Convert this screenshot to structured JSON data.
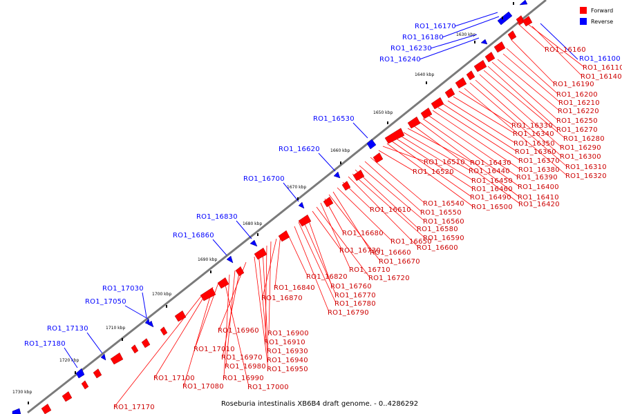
{
  "legend": [
    {
      "label": "Forward",
      "color": "#ff0000"
    },
    {
      "label": "Reverse",
      "color": "#0000ff"
    }
  ],
  "caption": "Roseburia intestinalis XB6B4 draft genome. - 0..4286292",
  "colors": {
    "forward": "#ff0000",
    "reverse": "#0000ff",
    "backbone": "#808080"
  },
  "kbp_ticks": [
    "1630 kbp",
    "1640 kbp",
    "1650 kbp",
    "1660 kbp",
    "1670 kbp",
    "1680 kbp",
    "1690 kbp",
    "1700 kbp",
    "1710 kbp",
    "1720 kbp",
    "1730 kbp"
  ],
  "reverse_labels": [
    "RO1_16170",
    "RO1_16180",
    "RO1_16230",
    "RO1_16240",
    "RO1_16530",
    "RO1_16620",
    "RO1_16700",
    "RO1_16830",
    "RO1_16860",
    "RO1_17030",
    "RO1_17050",
    "RO1_17130",
    "RO1_17180",
    "RO1_16100"
  ],
  "forward_labels": [
    "RO1_16160",
    "RO1_16110",
    "RO1_16140",
    "RO1_16190",
    "RO1_16200",
    "RO1_16210",
    "RO1_16220",
    "RO1_16250",
    "RO1_16270",
    "RO1_16280",
    "RO1_16290",
    "RO1_16300",
    "RO1_16310",
    "RO1_16320",
    "RO1_16330",
    "RO1_16340",
    "RO1_16350",
    "RO1_16360",
    "RO1_16370",
    "RO1_16380",
    "RO1_16390",
    "RO1_16400",
    "RO1_16410",
    "RO1_16420",
    "RO1_16430",
    "RO1_16440",
    "RO1_16450",
    "RO1_16460",
    "RO1_16490",
    "RO1_16500",
    "RO1_16510",
    "RO1_16520",
    "RO1_16540",
    "RO1_16550",
    "RO1_16560",
    "RO1_16580",
    "RO1_16590",
    "RO1_16600",
    "RO1_16610",
    "RO1_16650",
    "RO1_16660",
    "RO1_16670",
    "RO1_16680",
    "RO1_16710",
    "RO1_16720",
    "RO1_16730",
    "RO1_16760",
    "RO1_16770",
    "RO1_16780",
    "RO1_16790",
    "RO1_16820",
    "RO1_16840",
    "RO1_16870",
    "RO1_16900",
    "RO1_16910",
    "RO1_16930",
    "RO1_16940",
    "RO1_16950",
    "RO1_16960",
    "RO1_16970",
    "RO1_16980",
    "RO1_16990",
    "RO1_17000",
    "RO1_17010",
    "RO1_17080",
    "RO1_17100",
    "RO1_17170"
  ]
}
